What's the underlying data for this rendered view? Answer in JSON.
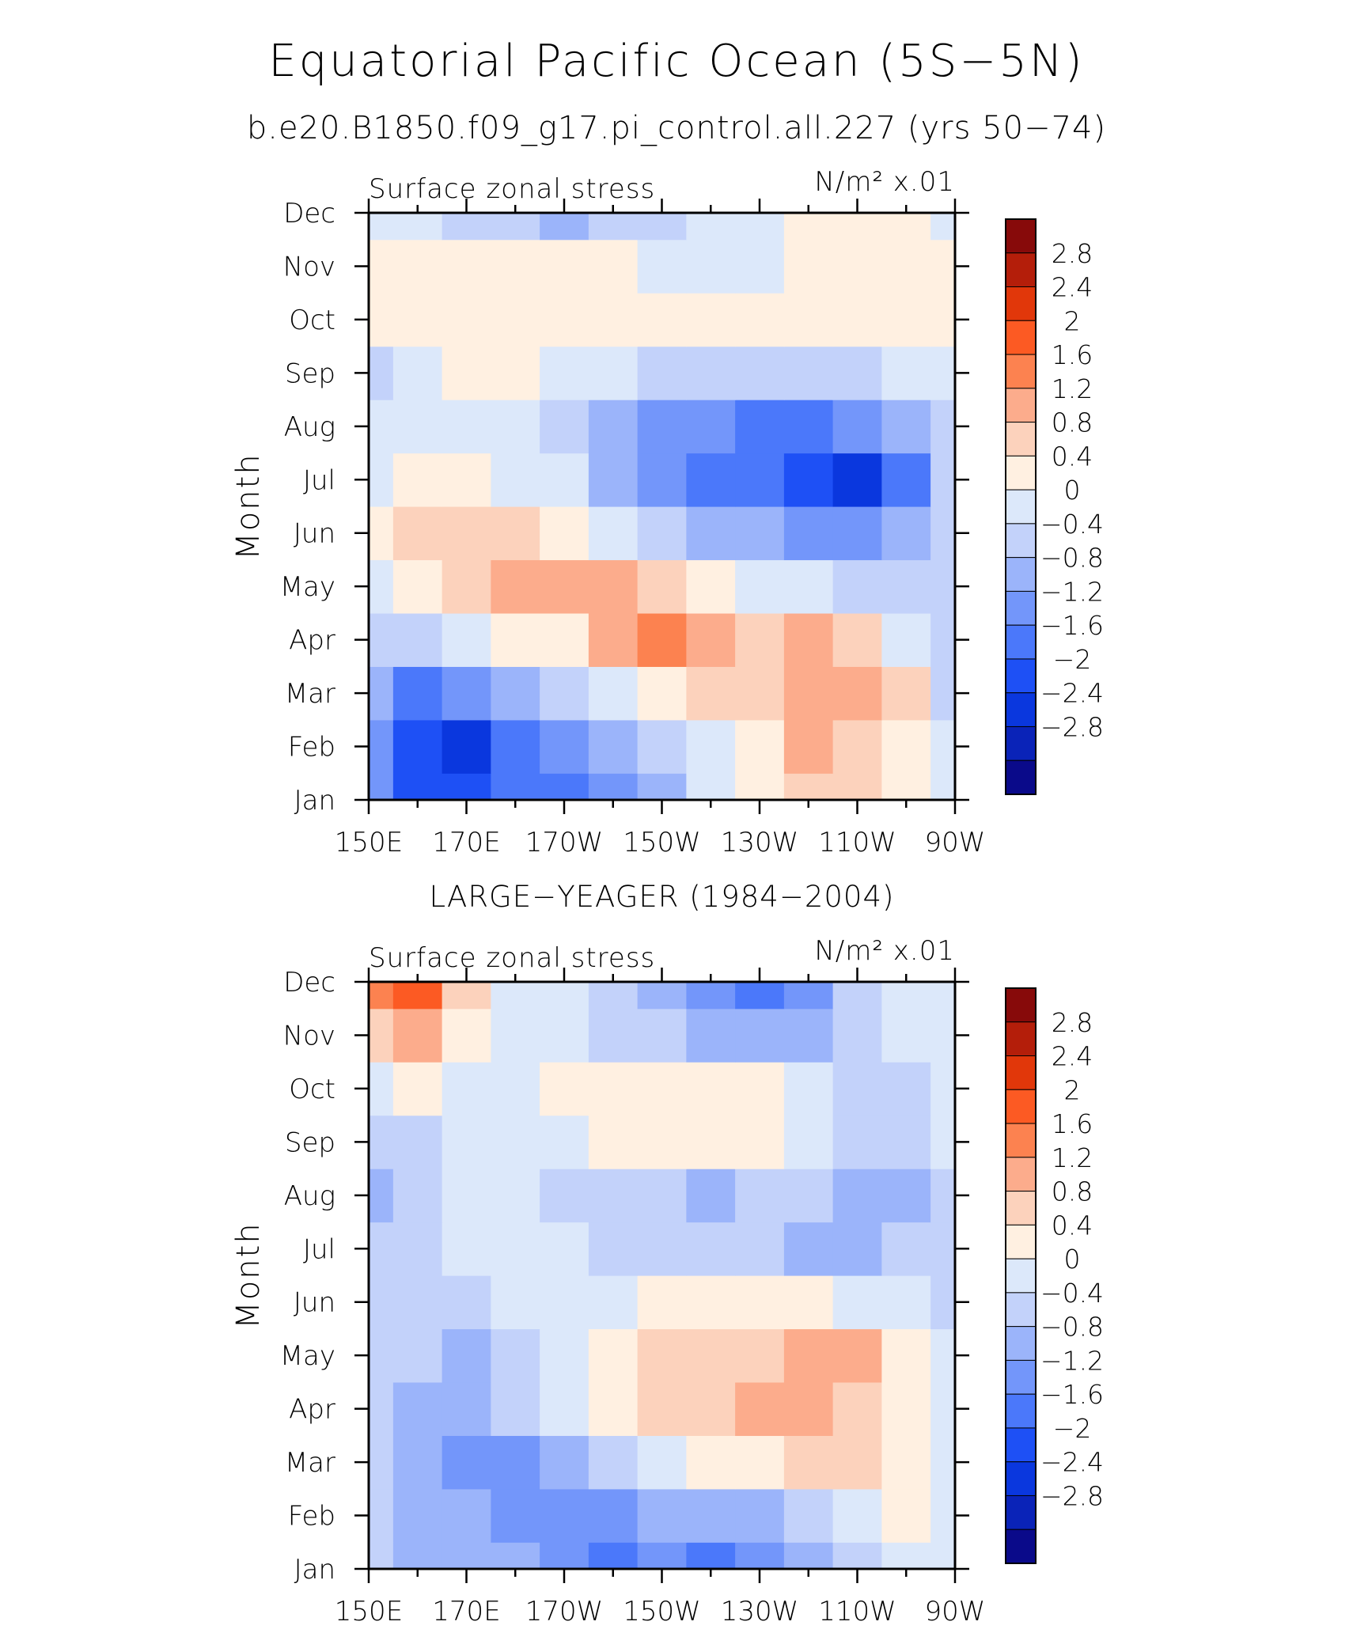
{
  "figure": {
    "title": "Equatorial Pacific Ocean (5S−5N)",
    "subtitle": "b.e20.B1850.f09_g17.pi_control.all.227 (yrs 50−74)"
  },
  "chart_data": [
    {
      "type": "heatmap",
      "panel_title": "",
      "left_label": "Surface zonal stress",
      "right_label": "N/m² x.01",
      "ylabel": "Month",
      "xlabel": "",
      "x_ticks": [
        "150E",
        "170E",
        "170W",
        "150W",
        "130W",
        "110W",
        "90W"
      ],
      "x_tick_lon": [
        150,
        170,
        190,
        210,
        230,
        250,
        270
      ],
      "y_ticks": [
        "Jan",
        "Feb",
        "Mar",
        "Apr",
        "May",
        "Jun",
        "Jul",
        "Aug",
        "Sep",
        "Oct",
        "Nov",
        "Dec"
      ],
      "x_range": [
        150,
        270
      ],
      "y_range": [
        "Jan",
        "Dec"
      ],
      "grid_lon": [
        150,
        160,
        170,
        180,
        190,
        200,
        210,
        220,
        230,
        240,
        250,
        260,
        270
      ],
      "values": [
        [
          -1.0,
          -2.0,
          -2.0,
          -1.6,
          -1.6,
          -1.2,
          -0.8,
          0.0,
          0.4,
          0.8,
          0.8,
          0.6,
          0.2
        ],
        [
          -1.2,
          -2.0,
          -2.2,
          -1.6,
          -1.0,
          -0.6,
          -0.2,
          0.2,
          0.6,
          1.2,
          1.0,
          0.6,
          0.0
        ],
        [
          -0.8,
          -1.6,
          -1.2,
          -0.6,
          -0.2,
          0.2,
          0.4,
          0.8,
          1.0,
          1.2,
          1.2,
          0.8,
          -0.2
        ],
        [
          -0.2,
          -0.4,
          0.0,
          0.4,
          0.6,
          1.2,
          1.6,
          1.2,
          1.0,
          1.2,
          0.8,
          0.2,
          -0.2
        ],
        [
          0.2,
          0.6,
          0.8,
          1.2,
          1.4,
          1.2,
          0.8,
          0.4,
          0.2,
          0.0,
          -0.2,
          -0.4,
          -0.4
        ],
        [
          0.4,
          0.8,
          1.0,
          0.8,
          0.4,
          0.0,
          -0.4,
          -0.6,
          -0.8,
          -1.0,
          -1.2,
          -0.8,
          -0.4
        ],
        [
          0.2,
          0.4,
          0.4,
          0.2,
          0.0,
          -0.6,
          -1.0,
          -1.4,
          -1.6,
          -2.0,
          -2.2,
          -1.6,
          -0.4
        ],
        [
          0.0,
          0.2,
          0.2,
          0.0,
          -0.4,
          -0.8,
          -1.0,
          -1.2,
          -1.4,
          -1.6,
          -1.2,
          -0.8,
          -0.2
        ],
        [
          -0.2,
          0.2,
          0.4,
          0.4,
          0.2,
          0.0,
          -0.2,
          -0.4,
          -0.4,
          -0.4,
          -0.2,
          0.0,
          0.2
        ],
        [
          0.4,
          0.6,
          0.6,
          0.6,
          0.6,
          0.6,
          0.6,
          0.4,
          0.4,
          0.4,
          0.6,
          0.6,
          0.4
        ],
        [
          0.6,
          0.6,
          0.6,
          0.6,
          0.4,
          0.4,
          0.2,
          0.2,
          0.2,
          0.4,
          0.6,
          0.6,
          0.4
        ],
        [
          0.2,
          0.0,
          -0.2,
          -0.4,
          -0.6,
          -0.4,
          -0.2,
          0.0,
          0.2,
          0.4,
          0.6,
          0.4,
          0.2
        ]
      ],
      "colorbar": {
        "labels": [
          "2.8",
          "2.4",
          "2",
          "1.6",
          "1.2",
          "0.8",
          "0.4",
          "0",
          "−0.4",
          "−0.8",
          "−1.2",
          "−1.6",
          "−2",
          "−2.4",
          "−2.8"
        ],
        "levels": [
          -2.8,
          -2.4,
          -2.0,
          -1.6,
          -1.2,
          -0.8,
          -0.4,
          0.0,
          0.4,
          0.8,
          1.2,
          1.6,
          2.0,
          2.4,
          2.8
        ],
        "colors": [
          "#0a0a8a",
          "#0a23b8",
          "#0a37de",
          "#1e50f5",
          "#4b78fa",
          "#7396fa",
          "#9bb4fa",
          "#c3d2fa",
          "#dce8fa",
          "#fff0e1",
          "#fcd2bc",
          "#fcac8c",
          "#fc8250",
          "#fc5a23",
          "#e1370a",
          "#b41e0a",
          "#870a0a"
        ]
      }
    },
    {
      "type": "heatmap",
      "panel_title": "LARGE−YEAGER (1984−2004)",
      "left_label": "Surface zonal stress",
      "right_label": "N/m² x.01",
      "ylabel": "Month",
      "xlabel": "",
      "x_ticks": [
        "150E",
        "170E",
        "170W",
        "150W",
        "130W",
        "110W",
        "90W"
      ],
      "x_tick_lon": [
        150,
        170,
        190,
        210,
        230,
        250,
        270
      ],
      "y_ticks": [
        "Jan",
        "Feb",
        "Mar",
        "Apr",
        "May",
        "Jun",
        "Jul",
        "Aug",
        "Sep",
        "Oct",
        "Nov",
        "Dec"
      ],
      "x_range": [
        150,
        270
      ],
      "y_range": [
        "Jan",
        "Dec"
      ],
      "grid_lon": [
        150,
        160,
        170,
        180,
        190,
        200,
        210,
        220,
        230,
        240,
        250,
        260,
        270
      ],
      "values": [
        [
          -0.4,
          -0.6,
          -0.8,
          -0.8,
          -1.2,
          -1.4,
          -1.2,
          -1.4,
          -1.2,
          -0.8,
          -0.4,
          0.2,
          0.2
        ],
        [
          -0.4,
          -0.8,
          -0.8,
          -1.0,
          -1.2,
          -1.0,
          -0.8,
          -0.8,
          -0.6,
          -0.2,
          0.2,
          0.4,
          0.2
        ],
        [
          -0.2,
          -0.8,
          -1.2,
          -1.0,
          -0.6,
          -0.2,
          0.2,
          0.4,
          0.6,
          0.8,
          0.8,
          0.6,
          0.0
        ],
        [
          -0.2,
          -0.6,
          -0.8,
          -0.4,
          0.0,
          0.4,
          0.8,
          1.0,
          1.2,
          1.2,
          1.0,
          0.6,
          0.0
        ],
        [
          -0.2,
          -0.4,
          -0.6,
          -0.2,
          0.2,
          0.6,
          0.8,
          0.8,
          1.0,
          1.4,
          1.2,
          0.6,
          0.0
        ],
        [
          -0.2,
          -0.2,
          -0.2,
          0.0,
          0.2,
          0.2,
          0.4,
          0.4,
          0.6,
          0.4,
          0.2,
          0.0,
          -0.2
        ],
        [
          -0.4,
          -0.2,
          0.0,
          0.0,
          0.0,
          -0.2,
          -0.2,
          -0.4,
          -0.4,
          -0.6,
          -0.6,
          -0.4,
          -0.2
        ],
        [
          -0.6,
          -0.2,
          0.0,
          0.0,
          -0.2,
          -0.2,
          -0.2,
          -0.6,
          -0.4,
          -0.4,
          -0.8,
          -0.6,
          -0.2
        ],
        [
          -0.4,
          -0.2,
          0.0,
          0.0,
          0.2,
          0.4,
          0.4,
          0.6,
          0.6,
          0.2,
          -0.2,
          -0.2,
          0.0
        ],
        [
          0.2,
          0.4,
          0.2,
          0.0,
          0.4,
          0.6,
          0.6,
          0.4,
          0.4,
          0.2,
          -0.2,
          -0.2,
          0.2
        ],
        [
          1.0,
          1.4,
          0.6,
          0.0,
          0.0,
          -0.2,
          -0.4,
          -0.6,
          -0.6,
          -0.6,
          -0.2,
          0.0,
          0.0
        ],
        [
          1.6,
          2.0,
          0.8,
          0.0,
          0.0,
          -0.4,
          -0.8,
          -1.2,
          -1.4,
          -1.0,
          -0.4,
          0.0,
          0.0
        ]
      ],
      "colorbar": {
        "labels": [
          "2.8",
          "2.4",
          "2",
          "1.6",
          "1.2",
          "0.8",
          "0.4",
          "0",
          "−0.4",
          "−0.8",
          "−1.2",
          "−1.6",
          "−2",
          "−2.4",
          "−2.8"
        ],
        "levels": [
          -2.8,
          -2.4,
          -2.0,
          -1.6,
          -1.2,
          -0.8,
          -0.4,
          0.0,
          0.4,
          0.8,
          1.2,
          1.6,
          2.0,
          2.4,
          2.8
        ],
        "colors": [
          "#0a0a8a",
          "#0a23b8",
          "#0a37de",
          "#1e50f5",
          "#4b78fa",
          "#7396fa",
          "#9bb4fa",
          "#c3d2fa",
          "#dce8fa",
          "#fff0e1",
          "#fcd2bc",
          "#fcac8c",
          "#fc8250",
          "#fc5a23",
          "#e1370a",
          "#b41e0a",
          "#870a0a"
        ]
      }
    }
  ]
}
